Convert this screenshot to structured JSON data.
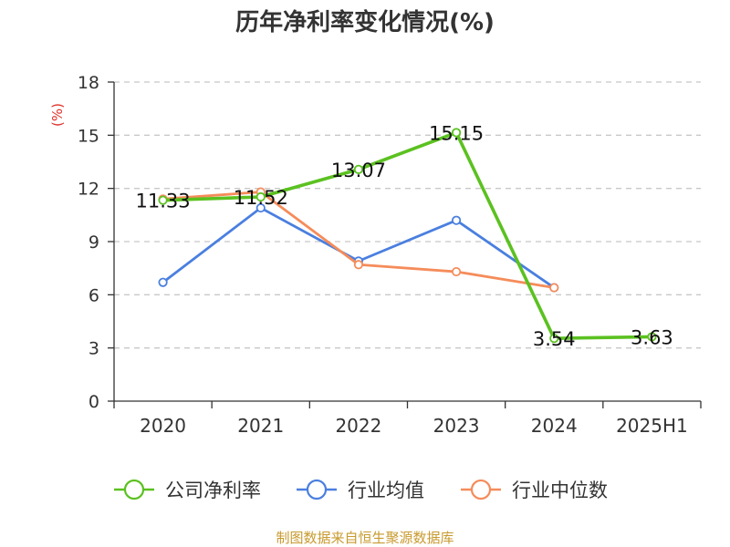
{
  "source_text": "制图数据来自恒生聚源数据库",
  "colors": {
    "company": "#5bc120",
    "industry_avg": "#4a7fe0",
    "industry_median": "#f58c5a",
    "unit": "#e0302a",
    "source": "#c89a2e",
    "grid": "#c8c8c8",
    "axis": "#333333"
  },
  "chart_data": {
    "type": "line",
    "title": "历年净利率变化情况(%)",
    "ylabel": "(%)",
    "categories": [
      "2020",
      "2021",
      "2022",
      "2023",
      "2024",
      "2025H1"
    ],
    "ylim": [
      0,
      18
    ],
    "yticks": [
      0,
      3,
      6,
      9,
      12,
      15,
      18
    ],
    "grid": true,
    "legend_position": "bottom",
    "series": [
      {
        "name": "公司净利率",
        "color": "#5bc120",
        "values": [
          11.33,
          11.52,
          13.07,
          15.15,
          3.54,
          3.63
        ],
        "labels": [
          "11.33",
          "11.52",
          "13.07",
          "15.15",
          "3.54",
          "3.63"
        ]
      },
      {
        "name": "行业均值",
        "color": "#4a7fe0",
        "values": [
          6.7,
          10.9,
          7.9,
          10.2,
          6.4,
          null
        ]
      },
      {
        "name": "行业中位数",
        "color": "#f58c5a",
        "values": [
          11.4,
          11.8,
          7.7,
          7.3,
          6.4,
          null
        ]
      }
    ]
  }
}
